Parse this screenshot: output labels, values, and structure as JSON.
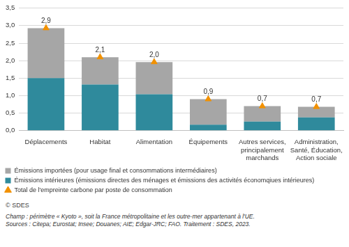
{
  "chart_data": {
    "type": "bar",
    "stacked": true,
    "grid": true,
    "legend": "bottom",
    "categories": [
      [
        "Déplacements"
      ],
      [
        "Habitat"
      ],
      [
        "Alimentation"
      ],
      [
        "Équipements"
      ],
      [
        "Autres services,",
        "principalement",
        "marchands"
      ],
      [
        "Administration,",
        "Santé, Éducation,",
        "Action sociale"
      ]
    ],
    "ylim": [
      0,
      3.5
    ],
    "yticks": [
      {
        "value": 0,
        "label": "0,0"
      },
      {
        "value": 0.5,
        "label": "0,5"
      },
      {
        "value": 1,
        "label": "1,0"
      },
      {
        "value": 1.5,
        "label": "1,5"
      },
      {
        "value": 2,
        "label": "2,0"
      },
      {
        "value": 2.5,
        "label": "2,5"
      },
      {
        "value": 3,
        "label": "3,0"
      },
      {
        "value": 3.5,
        "label": "3,5"
      }
    ],
    "series": [
      {
        "name": "Émissions intérieures (émissions directes des ménages et émissions des activités économqiues intérieures)",
        "type": "bar",
        "color": "#2f8a9c",
        "values": [
          1.5,
          1.32,
          1.04,
          0.17,
          0.26,
          0.38
        ]
      },
      {
        "name": "Émissions importées (pour usage final et consommations intermédiaires)",
        "type": "bar",
        "color": "#a6a6a6",
        "values": [
          1.43,
          0.78,
          0.92,
          0.73,
          0.44,
          0.3
        ]
      },
      {
        "name": "Total de l'empreinte carbone par poste de consommation",
        "type": "line",
        "color": "#f29100",
        "marker": "triangle",
        "line_style": "none",
        "data_labels": true,
        "values": [
          2.93,
          2.1,
          1.96,
          0.9,
          0.7,
          0.68
        ],
        "value_labels": [
          "2,9",
          "2,1",
          "2,0",
          "0,9",
          "0,7",
          "0,7"
        ]
      }
    ],
    "notes": [
      "© SDES",
      "Champ : périmètre « Kyoto », soit la France métropolitaine et les outre-mer appartenant à l'UE.",
      "Sources : Citepa; Eurostat; Insee; Douanes; AIE; Edgar-JRC; FAO. Traitement : SDES, 2023."
    ]
  }
}
